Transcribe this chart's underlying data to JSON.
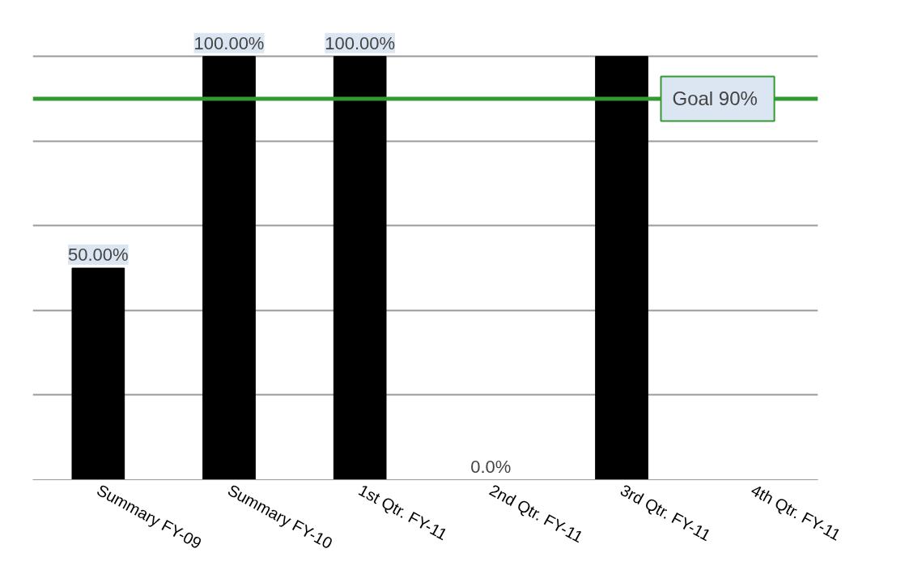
{
  "chart_data": {
    "type": "bar",
    "categories": [
      "Summary   FY-09",
      "Summary   FY-10",
      "1st Qtr.    FY-11",
      "2nd Qtr.    FY-11",
      "3rd Qtr.    FY-11",
      "4th Qtr.    FY-11"
    ],
    "values": [
      50,
      100,
      100,
      0,
      100,
      null
    ],
    "color": "#000000",
    "value_labels": [
      "50.00%",
      "100.00%",
      "100.00%",
      "0.0%",
      null,
      null
    ],
    "tick_labels": "x",
    "grid": "y",
    "ref_lines": [
      {
        "axis": "y",
        "value": 90,
        "label": "Goal  90%",
        "color": "#339933",
        "line_style": "solid"
      }
    ]
  }
}
